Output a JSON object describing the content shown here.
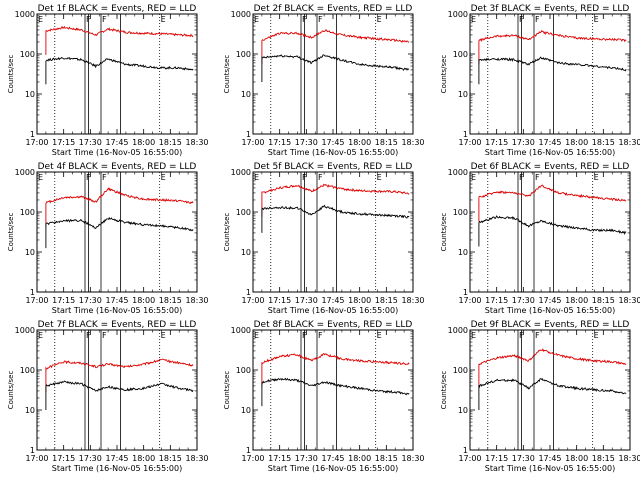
{
  "figure": {
    "colors": {
      "events": "#000000",
      "lld": "#dd0000",
      "background": "#ffffff"
    },
    "y_scale": "log",
    "ylim": [
      1,
      1000
    ],
    "x_range": [
      "17:00",
      "18:30"
    ],
    "x_ticks": [
      "17:00",
      "17:15",
      "17:30",
      "17:45",
      "18:00",
      "18:15",
      "18:30"
    ],
    "y_ticks": [
      "1",
      "10",
      "100",
      "1000"
    ],
    "ylabel": "Counts/sec",
    "xlabel": "Start Time (16-Nov-05 16:55:00)",
    "time_markers": [
      {
        "label": "E",
        "time": "17:00",
        "style": "solid"
      },
      {
        "label": "",
        "time": "17:10",
        "style": "dotted"
      },
      {
        "label": "F",
        "time": "17:27",
        "style": "solid"
      },
      {
        "label": "",
        "time": "17:29",
        "style": "solid"
      },
      {
        "label": "F",
        "time": "17:36",
        "style": "solid"
      },
      {
        "label": "",
        "time": "17:47",
        "style": "solid"
      },
      {
        "label": "E",
        "time": "18:09",
        "style": "dotted"
      }
    ]
  },
  "chart_data": [
    {
      "type": "line",
      "title": "Det 1f BLACK = Events, RED = LLD",
      "xlabel": "Start Time (16-Nov-05 16:55:00)",
      "ylabel": "Counts/sec",
      "yscale": "log",
      "ylim": [
        1,
        1000
      ],
      "x": [
        "17:05",
        "17:15",
        "17:25",
        "17:33",
        "17:40",
        "17:50",
        "18:00",
        "18:10",
        "18:20",
        "18:28"
      ],
      "series": [
        {
          "name": "RED = LLD",
          "color": "#dd0000",
          "values": [
            380,
            460,
            400,
            300,
            420,
            350,
            330,
            320,
            300,
            290
          ]
        },
        {
          "name": "BLACK = Events",
          "color": "#000000",
          "values": [
            70,
            80,
            72,
            50,
            75,
            55,
            50,
            45,
            45,
            40
          ]
        }
      ]
    },
    {
      "type": "line",
      "title": "Det 2f BLACK = Events, RED = LLD",
      "xlabel": "Start Time (16-Nov-05 16:55:00)",
      "ylabel": "Counts/sec",
      "yscale": "log",
      "ylim": [
        1,
        1000
      ],
      "x": [
        "17:05",
        "17:15",
        "17:25",
        "17:33",
        "17:40",
        "17:50",
        "18:00",
        "18:10",
        "18:20",
        "18:28"
      ],
      "series": [
        {
          "name": "RED = LLD",
          "color": "#dd0000",
          "values": [
            220,
            330,
            330,
            260,
            390,
            300,
            260,
            240,
            220,
            200
          ]
        },
        {
          "name": "BLACK = Events",
          "color": "#000000",
          "values": [
            80,
            90,
            85,
            60,
            95,
            70,
            55,
            50,
            45,
            40
          ]
        }
      ]
    },
    {
      "type": "line",
      "title": "Det 3f BLACK = Events, RED = LLD",
      "xlabel": "Start Time (16-Nov-05 16:55:00)",
      "ylabel": "Counts/sec",
      "yscale": "log",
      "ylim": [
        1,
        1000
      ],
      "x": [
        "17:05",
        "17:15",
        "17:25",
        "17:33",
        "17:40",
        "17:50",
        "18:00",
        "18:10",
        "18:20",
        "18:28"
      ],
      "series": [
        {
          "name": "RED = LLD",
          "color": "#dd0000",
          "values": [
            220,
            280,
            290,
            230,
            360,
            290,
            250,
            240,
            230,
            220
          ]
        },
        {
          "name": "BLACK = Events",
          "color": "#000000",
          "values": [
            70,
            75,
            72,
            55,
            80,
            60,
            55,
            50,
            45,
            40
          ]
        }
      ]
    },
    {
      "type": "line",
      "title": "Det 4f BLACK = Events, RED = LLD",
      "xlabel": "Start Time (16-Nov-05 16:55:00)",
      "ylabel": "Counts/sec",
      "yscale": "log",
      "ylim": [
        1,
        1000
      ],
      "x": [
        "17:05",
        "17:15",
        "17:25",
        "17:33",
        "17:40",
        "17:50",
        "18:00",
        "18:10",
        "18:20",
        "18:28"
      ],
      "series": [
        {
          "name": "RED = LLD",
          "color": "#dd0000",
          "values": [
            170,
            230,
            240,
            180,
            380,
            260,
            210,
            200,
            190,
            170
          ]
        },
        {
          "name": "BLACK = Events",
          "color": "#000000",
          "values": [
            50,
            60,
            62,
            40,
            70,
            55,
            48,
            45,
            40,
            35
          ]
        }
      ]
    },
    {
      "type": "line",
      "title": "Det 5f BLACK = Events, RED = LLD",
      "xlabel": "Start Time (16-Nov-05 16:55:00)",
      "ylabel": "Counts/sec",
      "yscale": "log",
      "ylim": [
        1,
        1000
      ],
      "x": [
        "17:05",
        "17:15",
        "17:25",
        "17:33",
        "17:40",
        "17:50",
        "18:00",
        "18:10",
        "18:20",
        "18:28"
      ],
      "series": [
        {
          "name": "RED = LLD",
          "color": "#dd0000",
          "values": [
            300,
            400,
            460,
            330,
            470,
            380,
            340,
            330,
            320,
            290
          ]
        },
        {
          "name": "BLACK = Events",
          "color": "#000000",
          "values": [
            120,
            130,
            125,
            85,
            140,
            100,
            90,
            85,
            80,
            75
          ]
        }
      ]
    },
    {
      "type": "line",
      "title": "Det 6f BLACK = Events, RED = LLD",
      "xlabel": "Start Time (16-Nov-05 16:55:00)",
      "ylabel": "Counts/sec",
      "yscale": "log",
      "ylim": [
        1,
        1000
      ],
      "x": [
        "17:05",
        "17:15",
        "17:25",
        "17:33",
        "17:40",
        "17:50",
        "18:00",
        "18:10",
        "18:20",
        "18:28"
      ],
      "series": [
        {
          "name": "RED = LLD",
          "color": "#dd0000",
          "values": [
            230,
            320,
            300,
            250,
            460,
            300,
            260,
            230,
            210,
            190
          ]
        },
        {
          "name": "BLACK = Events",
          "color": "#000000",
          "values": [
            55,
            75,
            70,
            45,
            60,
            45,
            40,
            35,
            35,
            30
          ]
        }
      ]
    },
    {
      "type": "line",
      "title": "Det 7f BLACK = Events, RED = LLD",
      "xlabel": "Start Time (16-Nov-05 16:55:00)",
      "ylabel": "Counts/sec",
      "yscale": "log",
      "ylim": [
        1,
        1000
      ],
      "x": [
        "17:05",
        "17:15",
        "17:25",
        "17:33",
        "17:40",
        "17:50",
        "18:00",
        "18:10",
        "18:20",
        "18:28"
      ],
      "series": [
        {
          "name": "RED = LLD",
          "color": "#dd0000",
          "values": [
            110,
            160,
            150,
            120,
            140,
            120,
            140,
            180,
            150,
            130
          ]
        },
        {
          "name": "BLACK = Events",
          "color": "#000000",
          "values": [
            40,
            50,
            45,
            30,
            38,
            32,
            35,
            45,
            35,
            30
          ]
        }
      ]
    },
    {
      "type": "line",
      "title": "Det 8f BLACK = Events, RED = LLD",
      "xlabel": "Start Time (16-Nov-05 16:55:00)",
      "ylabel": "Counts/sec",
      "yscale": "log",
      "ylim": [
        1,
        1000
      ],
      "x": [
        "17:05",
        "17:15",
        "17:25",
        "17:33",
        "17:40",
        "17:50",
        "18:00",
        "18:10",
        "18:20",
        "18:28"
      ],
      "series": [
        {
          "name": "RED = LLD",
          "color": "#dd0000",
          "values": [
            150,
            220,
            240,
            170,
            250,
            190,
            170,
            160,
            150,
            140
          ]
        },
        {
          "name": "BLACK = Events",
          "color": "#000000",
          "values": [
            50,
            60,
            55,
            40,
            50,
            40,
            35,
            30,
            28,
            25
          ]
        }
      ]
    },
    {
      "type": "line",
      "title": "Det 9f BLACK = Events, RED = LLD",
      "xlabel": "Start Time (16-Nov-05 16:55:00)",
      "ylabel": "Counts/sec",
      "yscale": "log",
      "ylim": [
        1,
        1000
      ],
      "x": [
        "17:05",
        "17:15",
        "17:25",
        "17:33",
        "17:40",
        "17:50",
        "18:00",
        "18:10",
        "18:20",
        "18:28"
      ],
      "series": [
        {
          "name": "RED = LLD",
          "color": "#dd0000",
          "values": [
            140,
            200,
            230,
            170,
            330,
            230,
            190,
            170,
            160,
            140
          ]
        },
        {
          "name": "BLACK = Events",
          "color": "#000000",
          "values": [
            40,
            55,
            55,
            35,
            60,
            40,
            35,
            32,
            30,
            25
          ]
        }
      ]
    }
  ]
}
